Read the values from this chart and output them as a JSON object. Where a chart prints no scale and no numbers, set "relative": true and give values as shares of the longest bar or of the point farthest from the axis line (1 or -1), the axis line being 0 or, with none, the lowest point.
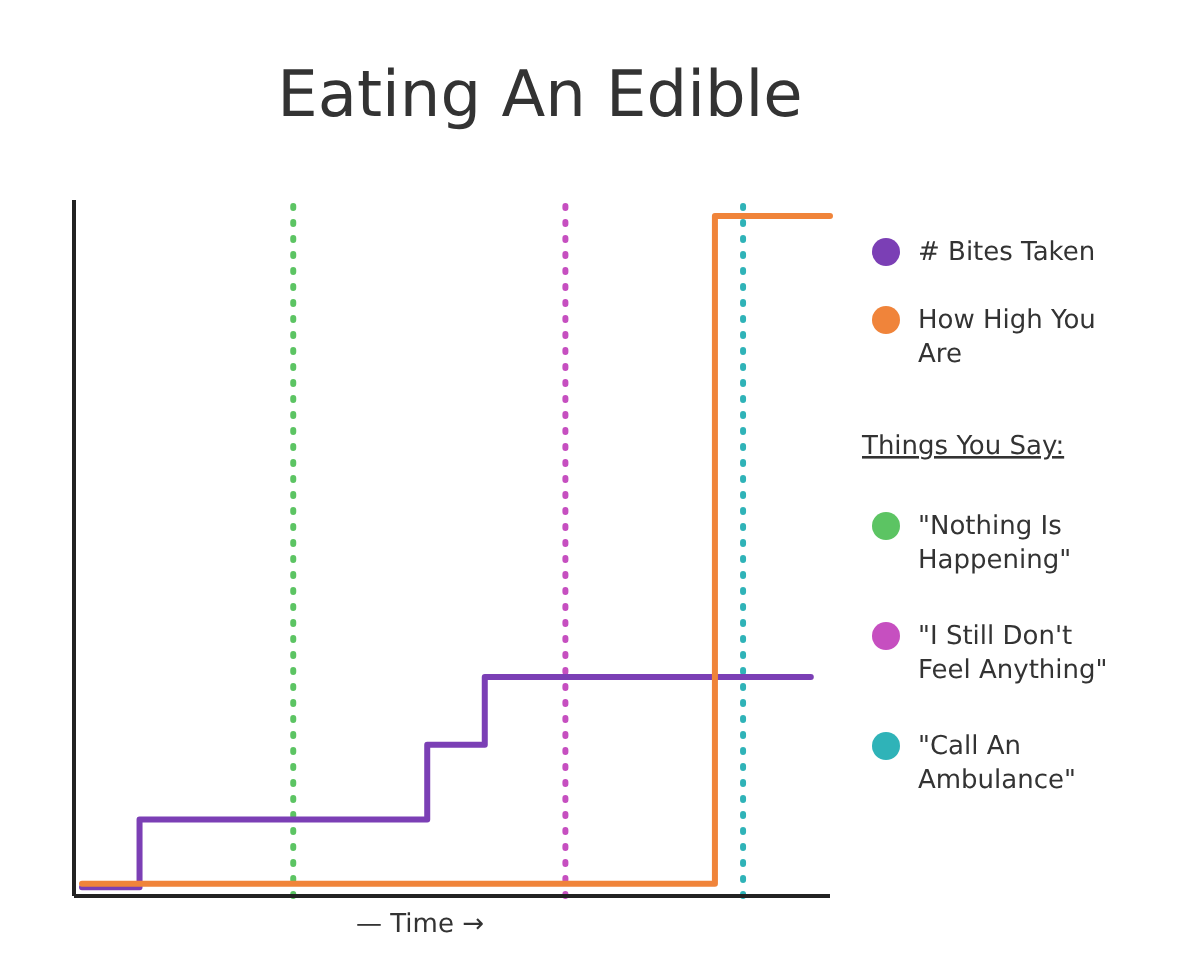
{
  "chart_data": {
    "type": "step",
    "title": "Eating An Edible",
    "xlabel": "— Time →",
    "relative": true,
    "grid": false,
    "legend": "right",
    "marker": "none",
    "categories": [
      null,
      null,
      null,
      null,
      null,
      null,
      null,
      null,
      null,
      null,
      null,
      null,
      null,
      null,
      null,
      null,
      null,
      null,
      null,
      null,
      null,
      null,
      null,
      null,
      null,
      null,
      null,
      null,
      null,
      null,
      null,
      null,
      null,
      null,
      null,
      null,
      null,
      null,
      null,
      null
    ],
    "series": [
      {
        "name": "# Bites Taken",
        "color": "#7b3fb5",
        "values": [
          0.01,
          0.01,
          0.01,
          0.11,
          0.11,
          0.11,
          0.11,
          0.11,
          0.11,
          0.11,
          0.11,
          0.11,
          0.11,
          0.11,
          0.11,
          0.11,
          0.11,
          0.11,
          0.22,
          0.22,
          0.22,
          0.32,
          0.32,
          0.32,
          0.32,
          0.32,
          0.32,
          0.32,
          0.32,
          0.32,
          0.32,
          0.32,
          0.32,
          0.32,
          0.32,
          0.32,
          0.32,
          0.32,
          0.32,
          null
        ]
      },
      {
        "name": "How High You Are",
        "color": "#f0843a",
        "values": [
          0.015,
          0.015,
          0.015,
          0.015,
          0.015,
          0.015,
          0.015,
          0.015,
          0.015,
          0.015,
          0.015,
          0.015,
          0.015,
          0.015,
          0.015,
          0.015,
          0.015,
          0.015,
          0.015,
          0.015,
          0.015,
          0.015,
          0.015,
          0.015,
          0.015,
          0.015,
          0.015,
          0.015,
          0.015,
          0.015,
          0.015,
          0.015,
          0.015,
          1,
          1,
          1,
          1,
          1,
          1,
          1
        ]
      }
    ],
    "annotations": [
      "Things You Say:"
    ],
    "ref_lines": [
      {
        "axis": "x",
        "label": "\"Nothing Is Happening\"",
        "color": "#5cc463",
        "line_style": "dotted"
      },
      {
        "axis": "x",
        "label": "\"I Still Don't Feel Anything\"",
        "color": "#c64fc0",
        "line_style": "dotted"
      },
      {
        "axis": "x",
        "label": "\"Call An Ambulance\"",
        "color": "#2fb3b8",
        "line_style": "dotted"
      }
    ]
  }
}
